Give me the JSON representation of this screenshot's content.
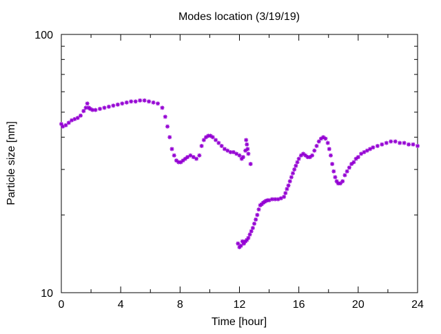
{
  "chart_data": {
    "type": "scatter",
    "title": "Modes location (3/19/19)",
    "xlabel": "Time [hour]",
    "ylabel": "Particle size [nm]",
    "xlim": [
      0,
      24
    ],
    "ylim": [
      10,
      100
    ],
    "yscale": "log",
    "grid": false,
    "legend": "none",
    "marker_color": "#9400d3",
    "xticks": [
      0,
      4,
      8,
      12,
      16,
      20,
      24
    ],
    "xtick_labels": [
      "0",
      "4",
      "8",
      "12",
      "16",
      "20",
      "24"
    ],
    "yticks": [
      10,
      100
    ],
    "ytick_labels": [
      "10",
      "100"
    ],
    "series": [
      {
        "x": [
          0.0,
          0.1,
          0.3,
          0.5,
          0.7,
          0.9,
          1.1,
          1.3,
          1.5,
          1.65,
          1.75,
          1.85,
          1.95,
          2.1,
          2.3,
          2.6,
          2.9,
          3.2,
          3.5,
          3.8,
          4.1,
          4.4,
          4.7,
          5.0,
          5.3,
          5.6,
          5.9,
          6.2,
          6.5,
          6.8,
          7.0,
          7.15,
          7.3,
          7.45,
          7.6,
          7.75,
          7.9,
          8.05,
          8.2,
          8.35,
          8.5,
          8.7,
          8.9,
          9.1,
          9.3,
          9.45,
          9.6,
          9.75,
          9.9,
          10.05,
          10.2,
          10.4,
          10.6,
          10.8,
          11.0,
          11.2,
          11.4,
          11.6,
          11.8,
          12.0,
          12.15,
          12.25
        ],
        "y": [
          45.0,
          44.0,
          44.5,
          45.5,
          46.5,
          47.0,
          47.5,
          48.5,
          50.5,
          52.0,
          54.0,
          52.0,
          51.5,
          51.0,
          51.0,
          51.5,
          52.0,
          52.5,
          53.0,
          53.5,
          54.0,
          54.5,
          55.0,
          55.0,
          55.5,
          55.5,
          55.0,
          54.5,
          54.0,
          52.0,
          48.0,
          44.0,
          40.0,
          36.0,
          34.0,
          32.5,
          32.0,
          32.0,
          32.5,
          33.0,
          33.5,
          34.0,
          33.5,
          33.0,
          34.0,
          37.0,
          39.0,
          40.0,
          40.5,
          40.5,
          40.0,
          39.0,
          38.0,
          37.0,
          36.0,
          35.5,
          35.0,
          35.0,
          34.5,
          34.0,
          33.0,
          33.5
        ]
      },
      {
        "x": [
          12.4,
          12.45,
          12.5,
          12.55,
          12.6,
          12.75
        ],
        "y": [
          35.5,
          39.0,
          37.5,
          36.0,
          34.5,
          31.5
        ]
      },
      {
        "x": [
          11.9,
          12.0,
          12.1,
          12.2,
          12.3,
          12.4,
          12.5,
          12.6,
          12.7,
          12.8,
          12.9,
          13.0,
          13.1,
          13.2,
          13.3,
          13.4,
          13.5,
          13.6,
          13.7,
          13.8,
          13.9,
          14.0,
          14.2,
          14.4,
          14.6,
          14.8,
          15.0,
          15.1,
          15.2,
          15.3,
          15.4,
          15.5,
          15.6,
          15.7,
          15.8,
          15.9,
          16.0,
          16.15,
          16.3,
          16.45,
          16.6,
          16.75,
          16.9,
          17.05,
          17.2,
          17.35,
          17.5,
          17.65,
          17.8,
          17.95,
          18.05,
          18.15,
          18.25,
          18.35,
          18.45,
          18.55,
          18.65,
          18.8,
          18.95,
          19.1,
          19.25,
          19.4,
          19.55,
          19.7,
          19.85,
          20.0,
          20.2,
          20.4,
          20.6,
          20.8,
          21.0,
          21.3,
          21.6,
          21.9,
          22.2,
          22.5,
          22.8,
          23.1,
          23.4,
          23.7,
          24.0
        ],
        "y": [
          15.5,
          15.0,
          15.2,
          15.8,
          15.5,
          15.8,
          16.0,
          16.3,
          16.8,
          17.3,
          17.8,
          18.5,
          19.2,
          20.0,
          21.0,
          21.8,
          22.0,
          22.3,
          22.5,
          22.7,
          22.8,
          22.8,
          23.0,
          23.0,
          23.0,
          23.2,
          23.5,
          24.3,
          25.2,
          26.0,
          27.0,
          28.0,
          29.0,
          30.0,
          31.0,
          32.0,
          33.0,
          34.0,
          34.5,
          34.0,
          33.5,
          33.5,
          34.0,
          35.5,
          37.0,
          38.5,
          39.5,
          40.0,
          39.5,
          38.0,
          36.0,
          34.0,
          31.5,
          29.5,
          28.0,
          27.0,
          26.5,
          26.5,
          27.0,
          28.5,
          29.5,
          30.5,
          31.5,
          32.0,
          33.0,
          33.5,
          34.5,
          35.0,
          35.5,
          36.0,
          36.5,
          37.0,
          37.5,
          38.0,
          38.5,
          38.5,
          38.0,
          38.0,
          37.5,
          37.5,
          37.0
        ]
      }
    ]
  }
}
